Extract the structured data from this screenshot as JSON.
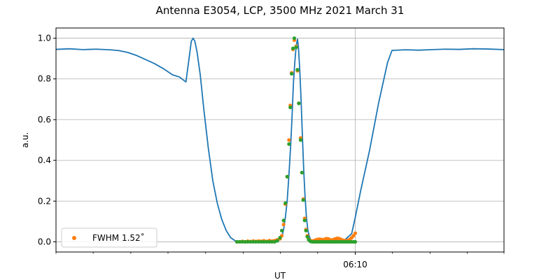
{
  "chart_data": {
    "type": "line",
    "title": "Antenna E3054, LCP, 3500 MHz 2021 March 31",
    "xlabel": "UT",
    "ylabel": "a.u.",
    "x_tick_major": [
      {
        "t": 0.668,
        "label": "06:10"
      }
    ],
    "x_tick_minor": [
      0.0,
      0.083,
      0.167,
      0.25,
      0.334,
      0.418,
      0.501,
      0.584,
      0.751,
      0.835,
      0.918,
      1.0
    ],
    "xlim": [
      0,
      1
    ],
    "ylim": [
      -0.05,
      1.05
    ],
    "yticks": [
      0.0,
      0.2,
      0.4,
      0.6,
      0.8,
      1.0
    ],
    "grid": true,
    "legend": {
      "placement": "lower-left",
      "entries": [
        {
          "label": "FWHM 1.52˚",
          "color": "#ff7f0e"
        }
      ]
    },
    "colors": {
      "series_main": "#1f77b4",
      "orange": "#ff7f0e",
      "green": "#2ca02c"
    },
    "series": [
      {
        "style": "line",
        "color": "#1f77b4",
        "points": [
          [
            0.0,
            0.945
          ],
          [
            0.03,
            0.948
          ],
          [
            0.06,
            0.944
          ],
          [
            0.09,
            0.946
          ],
          [
            0.12,
            0.943
          ],
          [
            0.14,
            0.939
          ],
          [
            0.16,
            0.93
          ],
          [
            0.18,
            0.915
          ],
          [
            0.2,
            0.895
          ],
          [
            0.22,
            0.875
          ],
          [
            0.24,
            0.85
          ],
          [
            0.26,
            0.82
          ],
          [
            0.275,
            0.81
          ],
          [
            0.29,
            0.785
          ],
          [
            0.297,
            0.9
          ],
          [
            0.302,
            0.985
          ],
          [
            0.306,
            1.0
          ],
          [
            0.31,
            0.985
          ],
          [
            0.315,
            0.93
          ],
          [
            0.322,
            0.82
          ],
          [
            0.33,
            0.65
          ],
          [
            0.34,
            0.46
          ],
          [
            0.35,
            0.3
          ],
          [
            0.36,
            0.19
          ],
          [
            0.37,
            0.11
          ],
          [
            0.38,
            0.055
          ],
          [
            0.39,
            0.02
          ],
          [
            0.4,
            0.005
          ],
          [
            0.41,
            0.0
          ],
          [
            0.46,
            0.0
          ],
          [
            0.48,
            0.0
          ],
          [
            0.49,
            0.003
          ],
          [
            0.5,
            0.01
          ],
          [
            0.505,
            0.03
          ],
          [
            0.508,
            0.06
          ],
          [
            0.512,
            0.12
          ],
          [
            0.516,
            0.2
          ],
          [
            0.52,
            0.33
          ],
          [
            0.524,
            0.48
          ],
          [
            0.527,
            0.62
          ],
          [
            0.53,
            0.78
          ],
          [
            0.533,
            0.88
          ],
          [
            0.536,
            0.96
          ],
          [
            0.539,
            0.995
          ],
          [
            0.541,
            0.96
          ],
          [
            0.544,
            0.85
          ],
          [
            0.547,
            0.7
          ],
          [
            0.55,
            0.52
          ],
          [
            0.553,
            0.35
          ],
          [
            0.556,
            0.22
          ],
          [
            0.559,
            0.12
          ],
          [
            0.562,
            0.06
          ],
          [
            0.565,
            0.03
          ],
          [
            0.568,
            0.012
          ],
          [
            0.575,
            0.003
          ],
          [
            0.59,
            0.0
          ],
          [
            0.64,
            0.0
          ],
          [
            0.66,
            0.04
          ],
          [
            0.668,
            0.12
          ],
          [
            0.68,
            0.25
          ],
          [
            0.7,
            0.45
          ],
          [
            0.72,
            0.68
          ],
          [
            0.74,
            0.88
          ],
          [
            0.75,
            0.94
          ],
          [
            0.78,
            0.943
          ],
          [
            0.81,
            0.941
          ],
          [
            0.84,
            0.944
          ],
          [
            0.87,
            0.946
          ],
          [
            0.9,
            0.945
          ],
          [
            0.93,
            0.948
          ],
          [
            0.96,
            0.947
          ],
          [
            1.0,
            0.944
          ]
        ]
      },
      {
        "style": "scatter",
        "name": "FWHM 1.52˚",
        "color": "#ff7f0e",
        "points": [
          [
            0.404,
            0.0
          ],
          [
            0.41,
            0.0
          ],
          [
            0.416,
            0.002
          ],
          [
            0.422,
            0.0
          ],
          [
            0.428,
            0.003
          ],
          [
            0.434,
            0.001
          ],
          [
            0.44,
            0.004
          ],
          [
            0.446,
            0.002
          ],
          [
            0.452,
            0.004
          ],
          [
            0.458,
            0.003
          ],
          [
            0.464,
            0.005
          ],
          [
            0.47,
            0.002
          ],
          [
            0.476,
            0.006
          ],
          [
            0.482,
            0.004
          ],
          [
            0.488,
            0.006
          ],
          [
            0.494,
            0.01
          ],
          [
            0.5,
            0.015
          ],
          [
            0.504,
            0.03
          ],
          [
            0.508,
            0.085
          ],
          [
            0.512,
            0.185
          ],
          [
            0.516,
            0.32
          ],
          [
            0.52,
            0.5
          ],
          [
            0.523,
            0.67
          ],
          [
            0.526,
            0.83
          ],
          [
            0.529,
            0.945
          ],
          [
            0.532,
            0.99
          ],
          [
            0.536,
            0.96
          ],
          [
            0.539,
            0.84
          ],
          [
            0.542,
            0.68
          ],
          [
            0.546,
            0.51
          ],
          [
            0.549,
            0.34
          ],
          [
            0.552,
            0.21
          ],
          [
            0.555,
            0.115
          ],
          [
            0.558,
            0.06
          ],
          [
            0.561,
            0.03
          ],
          [
            0.564,
            0.012
          ],
          [
            0.568,
            0.006
          ],
          [
            0.572,
            0.003
          ],
          [
            0.576,
            0.006
          ],
          [
            0.58,
            0.009
          ],
          [
            0.584,
            0.012
          ],
          [
            0.588,
            0.013
          ],
          [
            0.592,
            0.012
          ],
          [
            0.596,
            0.01
          ],
          [
            0.6,
            0.013
          ],
          [
            0.604,
            0.016
          ],
          [
            0.608,
            0.014
          ],
          [
            0.612,
            0.01
          ],
          [
            0.616,
            0.008
          ],
          [
            0.62,
            0.012
          ],
          [
            0.624,
            0.015
          ],
          [
            0.628,
            0.017
          ],
          [
            0.632,
            0.016
          ],
          [
            0.636,
            0.012
          ],
          [
            0.64,
            0.008
          ],
          [
            0.644,
            0.006
          ],
          [
            0.648,
            0.005
          ],
          [
            0.652,
            0.008
          ],
          [
            0.656,
            0.012
          ],
          [
            0.66,
            0.02
          ],
          [
            0.664,
            0.03
          ],
          [
            0.668,
            0.042
          ]
        ]
      },
      {
        "style": "scatter",
        "color": "#2ca02c",
        "points": [
          [
            0.404,
            0.0
          ],
          [
            0.41,
            0.0
          ],
          [
            0.416,
            0.0
          ],
          [
            0.422,
            0.0
          ],
          [
            0.428,
            0.0
          ],
          [
            0.434,
            0.0
          ],
          [
            0.44,
            0.0
          ],
          [
            0.446,
            0.0
          ],
          [
            0.452,
            0.0
          ],
          [
            0.458,
            0.0
          ],
          [
            0.464,
            0.0
          ],
          [
            0.47,
            0.0
          ],
          [
            0.476,
            0.0
          ],
          [
            0.482,
            0.0
          ],
          [
            0.488,
            0.0
          ],
          [
            0.494,
            0.005
          ],
          [
            0.5,
            0.02
          ],
          [
            0.504,
            0.055
          ],
          [
            0.508,
            0.105
          ],
          [
            0.512,
            0.19
          ],
          [
            0.516,
            0.32
          ],
          [
            0.52,
            0.48
          ],
          [
            0.523,
            0.66
          ],
          [
            0.526,
            0.825
          ],
          [
            0.529,
            0.95
          ],
          [
            0.532,
            1.0
          ],
          [
            0.536,
            0.955
          ],
          [
            0.539,
            0.845
          ],
          [
            0.542,
            0.68
          ],
          [
            0.546,
            0.5
          ],
          [
            0.549,
            0.34
          ],
          [
            0.552,
            0.205
          ],
          [
            0.555,
            0.105
          ],
          [
            0.558,
            0.055
          ],
          [
            0.561,
            0.025
          ],
          [
            0.564,
            0.01
          ],
          [
            0.568,
            0.002
          ],
          [
            0.572,
            0.0
          ],
          [
            0.576,
            0.0
          ],
          [
            0.58,
            0.0
          ],
          [
            0.584,
            0.0
          ],
          [
            0.588,
            0.0
          ],
          [
            0.592,
            0.0
          ],
          [
            0.596,
            0.0
          ],
          [
            0.6,
            0.0
          ],
          [
            0.604,
            0.0
          ],
          [
            0.608,
            0.0
          ],
          [
            0.612,
            0.0
          ],
          [
            0.616,
            0.0
          ],
          [
            0.62,
            0.0
          ],
          [
            0.624,
            0.0
          ],
          [
            0.628,
            0.0
          ],
          [
            0.632,
            0.0
          ],
          [
            0.636,
            0.0
          ],
          [
            0.64,
            0.0
          ],
          [
            0.644,
            0.0
          ],
          [
            0.648,
            0.0
          ],
          [
            0.652,
            0.0
          ],
          [
            0.656,
            0.0
          ],
          [
            0.66,
            0.0
          ],
          [
            0.664,
            0.0
          ],
          [
            0.668,
            0.0
          ]
        ]
      }
    ]
  }
}
